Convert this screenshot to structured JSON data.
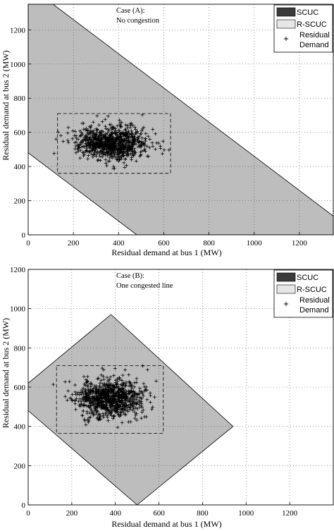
{
  "chart_data": [
    {
      "type": "scatter",
      "panel": "top",
      "annotation": [
        "Case (A):",
        "No congestion"
      ],
      "xlabel": "Residual demand at bus 1 (MW)",
      "ylabel": "Residual demand at bus 2 (MW)",
      "xlim": [
        0,
        1350
      ],
      "ylim": [
        0,
        1350
      ],
      "xticks": [
        0,
        200,
        400,
        600,
        800,
        1000,
        1200
      ],
      "yticks": [
        0,
        200,
        400,
        600,
        800,
        1000,
        1200
      ],
      "grid": true,
      "legend_position": "top-right",
      "legend": [
        {
          "label": "SCUC",
          "kind": "dark-patch"
        },
        {
          "label": "R-SCUC",
          "kind": "light-patch"
        },
        {
          "label": "Residual",
          "label2": "Demand",
          "kind": "plus-marker"
        }
      ],
      "region": [
        [
          0,
          1350
        ],
        [
          0,
          480
        ],
        [
          480,
          0
        ],
        [
          1350,
          0
        ],
        [
          1350,
          110
        ],
        [
          110,
          1350
        ]
      ],
      "dashed_box": {
        "x0": 130,
        "x1": 630,
        "y0": 360,
        "y1": 710
      },
      "scatter": {
        "center": [
          370,
          540
        ],
        "spread": [
          75,
          48
        ],
        "count": 900,
        "seed": 7
      }
    },
    {
      "type": "scatter",
      "panel": "bottom",
      "annotation": [
        "Case (B):",
        "One congested line"
      ],
      "xlabel": "Residual demand at bus 1 (MW)",
      "ylabel": "Residual demand at bus 2 (MW)",
      "xlim": [
        0,
        1400
      ],
      "ylim": [
        0,
        1200
      ],
      "xticks": [
        0,
        200,
        400,
        600,
        800,
        1000,
        1200
      ],
      "yticks": [
        0,
        200,
        400,
        600,
        800,
        1000,
        1200
      ],
      "grid": true,
      "legend_position": "top-right",
      "legend": [
        {
          "label": "SCUC",
          "kind": "dark-patch"
        },
        {
          "label": "R-SCUC",
          "kind": "light-patch"
        },
        {
          "label": "Residual",
          "label2": "Demand",
          "kind": "plus-marker"
        }
      ],
      "region": [
        [
          0,
          620
        ],
        [
          380,
          970
        ],
        [
          940,
          400
        ],
        [
          500,
          0
        ],
        [
          0,
          480
        ]
      ],
      "dashed_box": {
        "x0": 130,
        "x1": 620,
        "y0": 365,
        "y1": 710
      },
      "scatter": {
        "center": [
          370,
          545
        ],
        "spread": [
          75,
          48
        ],
        "count": 900,
        "seed": 11
      }
    }
  ]
}
